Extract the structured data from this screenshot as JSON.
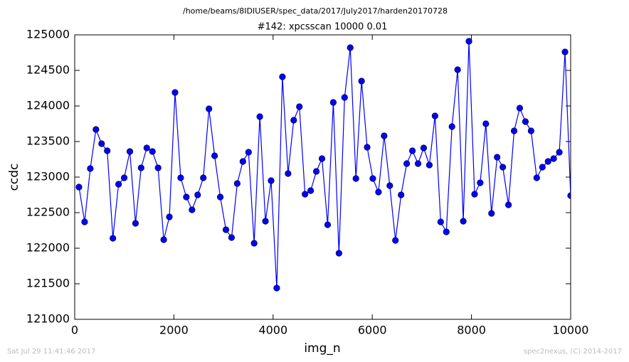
{
  "chart_data": {
    "type": "line",
    "header": "/home/beams/8IDIUSER/spec_data/2017/July2017/harden20170728",
    "title": "#142: xpcsscan 10000 0.01",
    "xlabel": "img_n",
    "ylabel": "ccdc",
    "footer_left": "Sat Jul 29 11:41:46 2017",
    "footer_right": "spec2nexus, (C) 2014-2017",
    "color": "#0000ff",
    "x": [
      86,
      200,
      314,
      428,
      542,
      656,
      770,
      884,
      998,
      1112,
      1226,
      1339,
      1453,
      1567,
      1681,
      1795,
      1909,
      2023,
      2137,
      2251,
      2365,
      2479,
      2593,
      2707,
      2821,
      2935,
      3049,
      3163,
      3277,
      3391,
      3505,
      3618,
      3732,
      3846,
      3960,
      4074,
      4188,
      4302,
      4416,
      4530,
      4644,
      4758,
      4872,
      4986,
      5100,
      5214,
      5328,
      5442,
      5556,
      5670,
      5784,
      5897,
      6011,
      6125,
      6239,
      6353,
      6467,
      6581,
      6695,
      6809,
      6923,
      7037,
      7151,
      7265,
      7379,
      7493,
      7607,
      7721,
      7835,
      7949,
      8063,
      8176,
      8290,
      8404,
      8518,
      8632,
      8746,
      8860,
      8974,
      9088,
      9202,
      9316,
      9430,
      9544,
      9658,
      9772,
      9886,
      10000
    ],
    "values": [
      122860,
      122370,
      123120,
      123670,
      123470,
      123370,
      122140,
      122900,
      122990,
      123360,
      122350,
      123130,
      123410,
      123360,
      123130,
      122120,
      122440,
      124190,
      122990,
      122720,
      122540,
      122750,
      122990,
      123960,
      123300,
      122720,
      122260,
      122150,
      122910,
      123220,
      123350,
      122070,
      123850,
      122380,
      122950,
      121440,
      124410,
      123050,
      123800,
      123990,
      122760,
      122810,
      123080,
      123260,
      122330,
      124050,
      121930,
      124120,
      124820,
      122980,
      124350,
      123420,
      122980,
      122790,
      123580,
      122880,
      122110,
      122750,
      123190,
      123370,
      123190,
      123410,
      123170,
      123860,
      122370,
      122230,
      123710,
      124510,
      122380,
      124910,
      122760,
      122920,
      123750,
      122490,
      123280,
      123140,
      122610,
      123650,
      123970,
      123780,
      123650,
      122990,
      123140,
      123220,
      123260,
      123350,
      124760,
      122740
    ],
    "xlim": [
      0,
      10000
    ],
    "xticks": [
      0,
      2000,
      4000,
      6000,
      8000,
      10000
    ],
    "ylim": [
      121000,
      125000
    ],
    "yticks": [
      121000,
      121500,
      122000,
      122500,
      123000,
      123500,
      124000,
      124500,
      125000
    ]
  }
}
